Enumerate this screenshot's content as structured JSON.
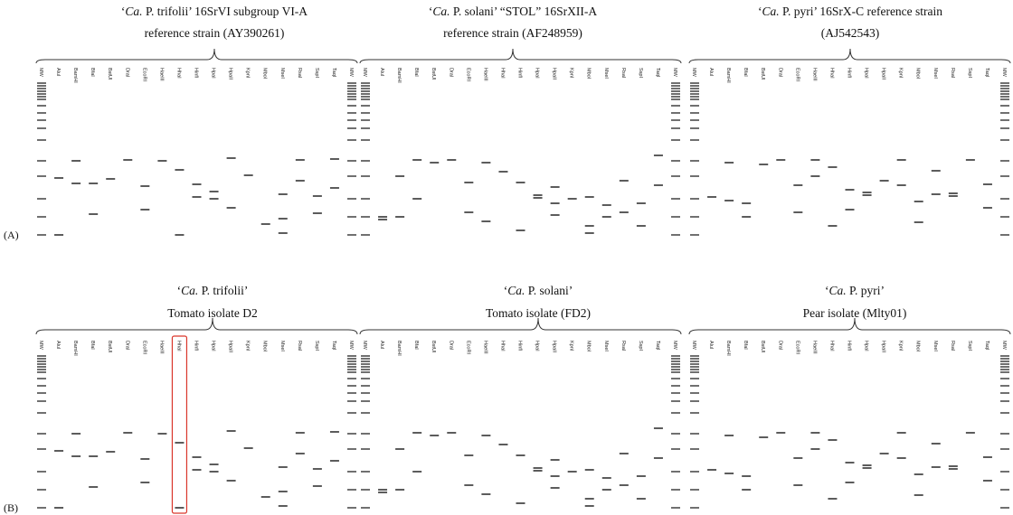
{
  "lanes": [
    "MW",
    "AluI",
    "BamHI",
    "BfaI",
    "BstUI",
    "DraI",
    "EcoRI",
    "HaeIII",
    "HhaI",
    "HinfI",
    "HpaI",
    "HpaII",
    "KpnI",
    "MboI",
    "MseI",
    "RsaI",
    "SspI",
    "TaqI",
    "MW"
  ],
  "rows": [
    {
      "label": "(A)",
      "panels": [
        {
          "title_open": "‘",
          "title_italic": "Ca.",
          "title_rest": " P. trifolii’ 16SrVI subgroup VI-A",
          "title_line2": "reference strain (AY390261)"
        },
        {
          "title_open": "‘",
          "title_italic": "Ca.",
          "title_rest": " P. solani’ “STOL” 16SrXII-A",
          "title_line2": "reference strain (AF248959)"
        },
        {
          "title_open": "‘",
          "title_italic": "Ca.",
          "title_rest": " P. pyri’ 16SrX-C reference strain",
          "title_line2": "(AJ542543)"
        }
      ]
    },
    {
      "label": "(B)",
      "panels": [
        {
          "title_open": "‘",
          "title_italic": "Ca.",
          "title_rest": " P. trifolii’",
          "title_line2": "Tomato isolate D2"
        },
        {
          "title_open": "‘",
          "title_italic": "Ca.",
          "title_rest": " P. solani’",
          "title_line2": "Tomato isolate (FD2)"
        },
        {
          "title_open": "‘",
          "title_italic": "Ca.",
          "title_rest": " P. pyri’",
          "title_line2": "Pear isolate (Mlty01)"
        }
      ]
    }
  ]
}
